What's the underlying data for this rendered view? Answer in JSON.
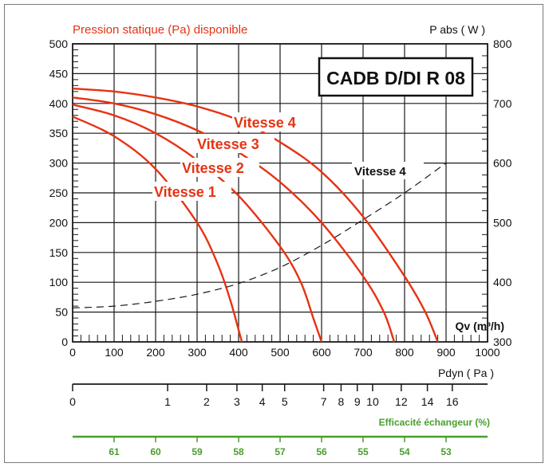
{
  "chart_data": {
    "type": "line",
    "title": "CADB D/DI R 08",
    "left_axis_title": "Pression statique (Pa) disponible",
    "right_axis_title": "P abs ( W )",
    "x_axis_title": "Qv (m³/h)",
    "pdyn_title": "Pdyn ( Pa )",
    "eff_title": "Efficacité échangeur (%)",
    "xlim": [
      0,
      1000
    ],
    "ylim": [
      0,
      500
    ],
    "y2lim": [
      300,
      800
    ],
    "x_ticks": [
      0,
      100,
      200,
      300,
      400,
      500,
      600,
      700,
      800,
      900,
      1000
    ],
    "y_ticks": [
      0,
      50,
      100,
      150,
      200,
      250,
      300,
      350,
      400,
      450,
      500
    ],
    "y2_ticks": [
      300,
      400,
      500,
      600,
      700,
      800
    ],
    "grid": true,
    "pressure_series": [
      {
        "name": "Vitesse 1",
        "x": [
          0,
          100,
          200,
          300,
          350,
          380,
          400,
          408
        ],
        "y": [
          378,
          345,
          290,
          200,
          130,
          70,
          20,
          0
        ]
      },
      {
        "name": "Vitesse 2",
        "x": [
          0,
          100,
          200,
          300,
          400,
          500,
          550,
          580,
          600
        ],
        "y": [
          398,
          380,
          350,
          305,
          245,
          160,
          100,
          40,
          0
        ]
      },
      {
        "name": "Vitesse 3",
        "x": [
          0,
          100,
          200,
          300,
          400,
          500,
          600,
          700,
          750,
          775
        ],
        "y": [
          410,
          400,
          382,
          355,
          318,
          268,
          200,
          110,
          50,
          0
        ]
      },
      {
        "name": "Vitesse 4",
        "x": [
          0,
          100,
          200,
          300,
          400,
          500,
          600,
          700,
          800,
          850,
          880
        ],
        "y": [
          425,
          420,
          410,
          395,
          372,
          335,
          285,
          210,
          110,
          50,
          0
        ]
      }
    ],
    "power_series": {
      "name": "Vitesse 4",
      "x": [
        0,
        100,
        200,
        300,
        400,
        500,
        600,
        700,
        800,
        900
      ],
      "y": [
        357,
        360,
        368,
        380,
        398,
        425,
        462,
        505,
        550,
        600
      ]
    },
    "pdyn_ticks": [
      {
        "label": "0",
        "x": 0
      },
      {
        "label": "1",
        "x": 229
      },
      {
        "label": "2",
        "x": 323
      },
      {
        "label": "3",
        "x": 396
      },
      {
        "label": "4",
        "x": 457
      },
      {
        "label": "5",
        "x": 511
      },
      {
        "label": "7",
        "x": 605
      },
      {
        "label": "8",
        "x": 647
      },
      {
        "label": "9",
        "x": 686
      },
      {
        "label": "10",
        "x": 723
      },
      {
        "label": "12",
        "x": 792
      },
      {
        "label": "14",
        "x": 855
      },
      {
        "label": "16",
        "x": 915
      }
    ],
    "efficiency_ticks": [
      {
        "label": "61",
        "x": 100
      },
      {
        "label": "60",
        "x": 200
      },
      {
        "label": "59",
        "x": 300
      },
      {
        "label": "58",
        "x": 400
      },
      {
        "label": "57",
        "x": 500
      },
      {
        "label": "56",
        "x": 600
      },
      {
        "label": "55",
        "x": 700
      },
      {
        "label": "54",
        "x": 800
      },
      {
        "label": "53",
        "x": 900
      }
    ]
  },
  "colors": {
    "curve": "#e63312",
    "grid": "#1a1a1a",
    "efficiency": "#4a9e2f",
    "frame": "#7a7a7a"
  }
}
